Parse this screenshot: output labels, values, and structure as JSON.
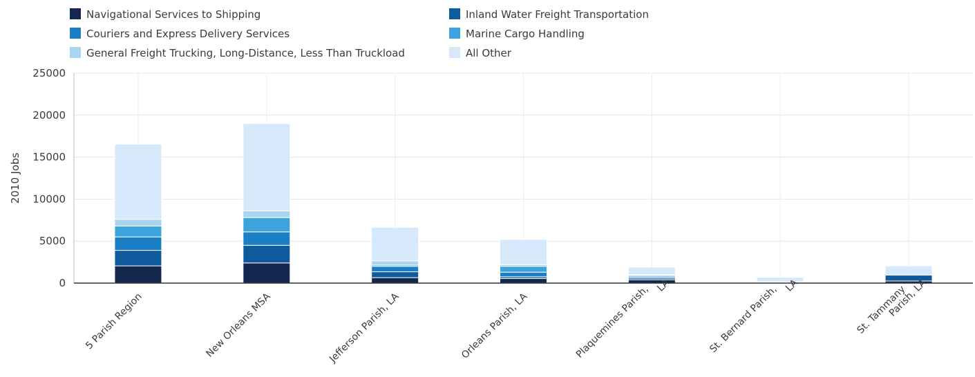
{
  "chart_data": {
    "type": "bar",
    "stacked": true,
    "ylabel": "2010 Jobs",
    "xlabel": "",
    "ylim": [
      0,
      25000
    ],
    "yticks": [
      0,
      5000,
      10000,
      15000,
      20000,
      25000
    ],
    "grid": true,
    "legend_position": "top-left",
    "categories": [
      [
        "5 Parish Region"
      ],
      [
        "New Orleans MSA"
      ],
      [
        "Jefferson Parish, LA"
      ],
      [
        "Orleans Parish, LA"
      ],
      [
        "Plaquemines Parish,",
        "LA"
      ],
      [
        "St. Bernard Parish,",
        "LA"
      ],
      [
        "St. Tammany",
        "Parish, LA"
      ]
    ],
    "series": [
      {
        "name": "Navigational Services to Shipping",
        "color": "#14284f",
        "values": [
          2050,
          2400,
          650,
          550,
          400,
          20,
          250
        ]
      },
      {
        "name": "Inland Water Freight Transportation",
        "color": "#0f5a9c",
        "values": [
          1850,
          2100,
          700,
          200,
          200,
          10,
          700
        ]
      },
      {
        "name": "Couriers and Express Delivery Services",
        "color": "#1a7fc4",
        "values": [
          1600,
          1600,
          650,
          550,
          150,
          30,
          0
        ]
      },
      {
        "name": "Marine Cargo Handling",
        "color": "#3ca3dc",
        "values": [
          1300,
          1700,
          150,
          700,
          150,
          40,
          0
        ]
      },
      {
        "name": "General Freight Trucking, Long-Distance, Less Than Truckload",
        "color": "#a9d4f2",
        "values": [
          800,
          800,
          500,
          200,
          100,
          50,
          0
        ]
      },
      {
        "name": "All Other",
        "color": "#d6e9fa",
        "values": [
          8950,
          10400,
          4000,
          3000,
          900,
          550,
          1100
        ]
      }
    ]
  }
}
